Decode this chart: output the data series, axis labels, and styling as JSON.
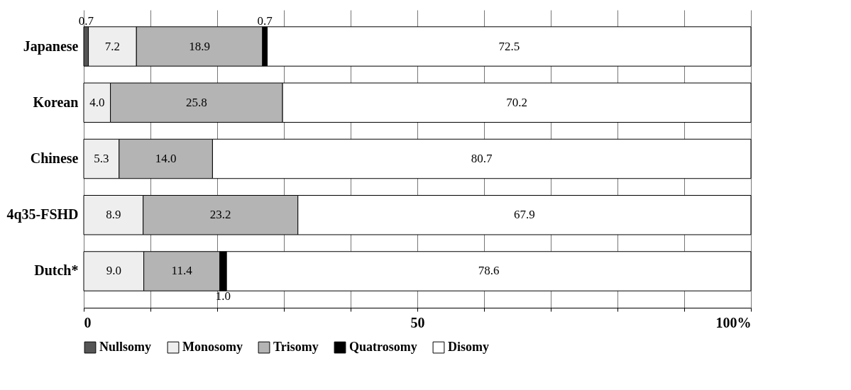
{
  "chart_data": {
    "type": "bar",
    "orientation": "horizontal",
    "stacked": true,
    "categories": [
      "Japanese",
      "Korean",
      "Chinese",
      "4q35-FSHD",
      "Dutch*"
    ],
    "series": [
      {
        "name": "Nullsomy",
        "color": "#555555",
        "values": [
          0.7,
          null,
          null,
          null,
          null
        ],
        "value_labels": [
          "0.7",
          null,
          null,
          null,
          null
        ]
      },
      {
        "name": "Monosomy",
        "color": "#eeeeee",
        "values": [
          7.2,
          4.0,
          5.3,
          8.9,
          9.0
        ],
        "value_labels": [
          "7.2",
          "4.0",
          "5.3",
          "8.9",
          "9.0"
        ]
      },
      {
        "name": "Trisomy",
        "color": "#b4b4b4",
        "values": [
          18.9,
          25.8,
          14.0,
          23.2,
          11.4
        ],
        "value_labels": [
          "18.9",
          "25.8",
          "14.0",
          "23.2",
          "11.4"
        ]
      },
      {
        "name": "Quatrosomy",
        "color": "#000000",
        "values": [
          0.7,
          null,
          null,
          null,
          1.0
        ],
        "value_labels": [
          "0.7",
          null,
          null,
          null,
          "1.0"
        ]
      },
      {
        "name": "Disomy",
        "color": "#ffffff",
        "values": [
          72.5,
          70.2,
          80.7,
          67.9,
          78.6
        ],
        "value_labels": [
          "72.5",
          "70.2",
          "80.7",
          "67.9",
          "78.6"
        ]
      }
    ],
    "xlim": [
      0,
      100
    ],
    "xticks": [
      0,
      {
        "value": 10,
        "label": null
      },
      {
        "value": 20,
        "label": null
      },
      {
        "value": 30,
        "label": null
      },
      {
        "value": 40,
        "label": null
      },
      50,
      {
        "value": 60,
        "label": null
      },
      {
        "value": 70,
        "label": null
      },
      {
        "value": 80,
        "label": null
      },
      {
        "value": 90,
        "label": null
      },
      {
        "value": 100,
        "label": "100%"
      }
    ],
    "grid": "x",
    "legend": "bottom"
  }
}
